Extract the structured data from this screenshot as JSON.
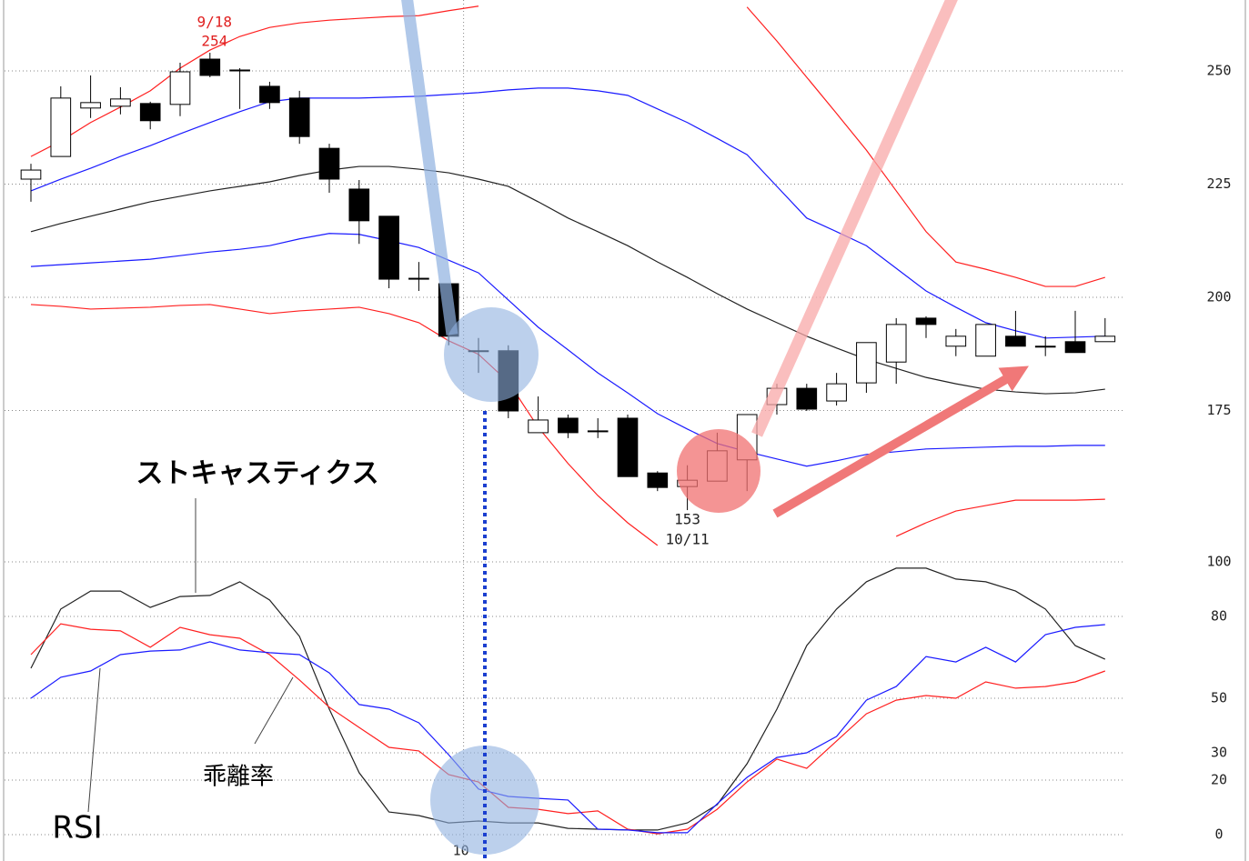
{
  "chart_data": [
    {
      "type": "candlestick",
      "x": [
        0,
        1,
        2,
        3,
        4,
        5,
        6,
        7,
        8,
        9,
        10,
        11,
        12,
        13,
        14,
        15,
        16,
        17,
        18,
        19,
        20,
        21,
        22,
        23,
        24,
        25,
        26,
        27,
        28,
        29,
        30,
        31,
        32,
        33,
        34,
        35,
        36
      ],
      "xlim": [
        -0.5,
        36.5
      ],
      "open": [
        226.1,
        231.1,
        241.8,
        242.2,
        242.8,
        242.6,
        252.6,
        250.2,
        246.6,
        244.0,
        232.9,
        223.9,
        217.9,
        204.2,
        203.0,
        188.2,
        188.2,
        170.1,
        173.3,
        170.5,
        173.3,
        161.2,
        158.2,
        159.4,
        164.1,
        176.3,
        179.9,
        177.1,
        181.1,
        185.7,
        195.4,
        189.2,
        187.0,
        191.4,
        189.2,
        190.2,
        190.2
      ],
      "high": [
        229.5,
        246.6,
        249.0,
        246.4,
        243.2,
        251.8,
        254,
        250.6,
        247.6,
        245.6,
        233.9,
        225.9,
        217.9,
        207.8,
        203.0,
        191.0,
        189.4,
        178.1,
        174.1,
        173.3,
        174.1,
        161.6,
        162.9,
        170.1,
        174.1,
        180.9,
        180.9,
        183.3,
        190.0,
        195.4,
        195.8,
        193.0,
        194.0,
        197.0,
        191.4,
        197.0,
        195.4
      ],
      "low": [
        221.1,
        231.1,
        239.6,
        240.4,
        237.1,
        240.0,
        248.6,
        241.6,
        241.6,
        233.9,
        223.1,
        211.8,
        202.0,
        201.4,
        189.4,
        183.3,
        173.3,
        170.1,
        168.9,
        168.9,
        160.4,
        157.2,
        153,
        159.4,
        157.2,
        174.1,
        174.9,
        176.1,
        178.9,
        180.9,
        191.0,
        187.0,
        187.0,
        189.2,
        187.0,
        187.8,
        190.2
      ],
      "close": [
        228.1,
        244.0,
        243.0,
        243.8,
        239.0,
        249.8,
        249.0,
        250.0,
        243.0,
        235.5,
        226.1,
        216.9,
        204.0,
        204.0,
        191.4,
        188.0,
        174.9,
        172.9,
        170.1,
        170.3,
        160.4,
        158.0,
        159.6,
        166.1,
        174.1,
        179.9,
        175.3,
        180.9,
        190.0,
        194.0,
        194.0,
        191.4,
        194.0,
        189.2,
        189.0,
        187.8,
        191.4
      ],
      "up_color": "#ffffff",
      "down_color": "#000000",
      "ylim": [
        145,
        266
      ],
      "yticks": [
        175,
        200,
        225,
        250
      ],
      "grid": true,
      "series": [
        {
          "color": "#222222",
          "values": [
            214.5,
            216.3,
            217.9,
            219.5,
            221.1,
            222.3,
            223.5,
            224.5,
            225.5,
            226.9,
            228.1,
            228.9,
            228.9,
            228.3,
            227.5,
            226.1,
            224.5,
            221.1,
            217.5,
            214.5,
            211.4,
            207.8,
            204.4,
            200.8,
            197.4,
            194.4,
            191.4,
            188.8,
            186.3,
            184.3,
            182.3,
            180.9,
            179.7,
            179.1,
            178.7,
            178.9,
            179.7
          ]
        },
        {
          "color": "#1a1aff",
          "values": [
            223.5,
            226.1,
            228.5,
            231.1,
            233.5,
            236.1,
            238.6,
            241.0,
            243.2,
            244.0,
            244.0,
            244.0,
            244.2,
            244.4,
            244.8,
            245.2,
            245.8,
            246.2,
            246.2,
            245.6,
            244.6,
            241.6,
            238.6,
            235.1,
            231.5,
            224.5,
            217.5,
            214.5,
            211.4,
            206.4,
            201.4,
            197.8,
            194.4,
            192.6,
            191.0,
            191.2,
            191.4
          ]
        },
        {
          "color": "#1a1aff",
          "values": [
            206.8,
            207.2,
            207.6,
            208.0,
            208.4,
            209.2,
            210.0,
            210.6,
            211.4,
            212.9,
            214.1,
            213.9,
            212.5,
            211.0,
            208.2,
            205.4,
            199.4,
            193.4,
            188.4,
            183.3,
            178.9,
            174.3,
            170.9,
            167.7,
            165.9,
            164.3,
            162.7,
            163.9,
            165.3,
            165.9,
            166.5,
            166.7,
            166.9,
            167.1,
            167.1,
            167.3,
            167.3
          ]
        },
        {
          "color": "#ff2020",
          "values": [
            231.1,
            234.5,
            238.6,
            242.0,
            245.6,
            250.6,
            254.6,
            257.6,
            259.6,
            260.6,
            261.2,
            261.6,
            262.0,
            262.2,
            263.3,
            264.3,
            null,
            null,
            null,
            null,
            null,
            null,
            null,
            null,
            264.1,
            256.6,
            248.6,
            240.6,
            232.5,
            223.5,
            214.5,
            207.8,
            206.2,
            204.4,
            202.4,
            202.4,
            204.4
          ]
        },
        {
          "color": "#ff2020",
          "values": [
            198.4,
            198.0,
            197.4,
            197.6,
            197.8,
            198.2,
            198.4,
            197.4,
            196.4,
            197.0,
            197.4,
            197.8,
            196.4,
            194.4,
            190.4,
            187.4,
            181.3,
            171.3,
            163.3,
            156.2,
            150.2,
            145.2,
            null,
            null,
            null,
            null,
            null,
            null,
            null,
            147.2,
            150.2,
            152.8,
            154.0,
            155.2,
            155.2,
            155.2,
            155.4
          ]
        }
      ],
      "annotations": [
        {
          "text": "9/18",
          "value": 254
        },
        {
          "text": "10/11",
          "value": 153
        }
      ],
      "annotation_color": "#e02020"
    },
    {
      "type": "line",
      "x": [
        0,
        1,
        2,
        3,
        4,
        5,
        6,
        7,
        8,
        9,
        10,
        11,
        12,
        13,
        14,
        15,
        16,
        17,
        18,
        19,
        20,
        21,
        22,
        23,
        24,
        25,
        26,
        27,
        28,
        29,
        30,
        31,
        32,
        33,
        34,
        35,
        36
      ],
      "xlim": [
        -0.5,
        36.5
      ],
      "xticks": [
        {
          "value": 14.5,
          "label": "10"
        }
      ],
      "ylim": [
        -7,
        106
      ],
      "yticks": [
        0,
        20,
        30,
        50,
        80,
        100
      ],
      "grid": true,
      "series": [
        {
          "name": "ストキャスティクス",
          "color": "#222222",
          "values": [
            61,
            82.7,
            89.3,
            89.3,
            83.3,
            87.3,
            87.7,
            92.7,
            86,
            72.7,
            46,
            22.7,
            8.3,
            7,
            4.3,
            5,
            4.3,
            4.3,
            2.3,
            2,
            1.7,
            1.7,
            4.3,
            11,
            26,
            46,
            69.3,
            82.7,
            92.7,
            97.7,
            97.7,
            93.7,
            92.7,
            89.3,
            82.7,
            69.3,
            64.3
          ]
        },
        {
          "name": "乖離率",
          "color": "#ff2020",
          "values": [
            66,
            77.3,
            75.3,
            74.7,
            68.7,
            76,
            73.3,
            72,
            66,
            56.7,
            46.7,
            39.3,
            32,
            30.7,
            22,
            19.3,
            10,
            9.3,
            7.7,
            8.7,
            2,
            0.3,
            2,
            9.3,
            19.3,
            27.7,
            24.3,
            34.3,
            44.3,
            49.3,
            51,
            50,
            56,
            53.7,
            54.3,
            56,
            60
          ]
        },
        {
          "name": "RSI",
          "color": "#1a1aff",
          "values": [
            50,
            57.7,
            60,
            66,
            67.3,
            67.7,
            70.7,
            67.7,
            66.7,
            66,
            59.3,
            47.7,
            46,
            41,
            29.3,
            16.7,
            14,
            13.3,
            12.7,
            2,
            1.7,
            0.7,
            0.7,
            11.3,
            21,
            28.3,
            30,
            36,
            49.3,
            54.3,
            65.3,
            63.3,
            68.7,
            63.3,
            73.3,
            76,
            77
          ]
        }
      ]
    }
  ]
}
